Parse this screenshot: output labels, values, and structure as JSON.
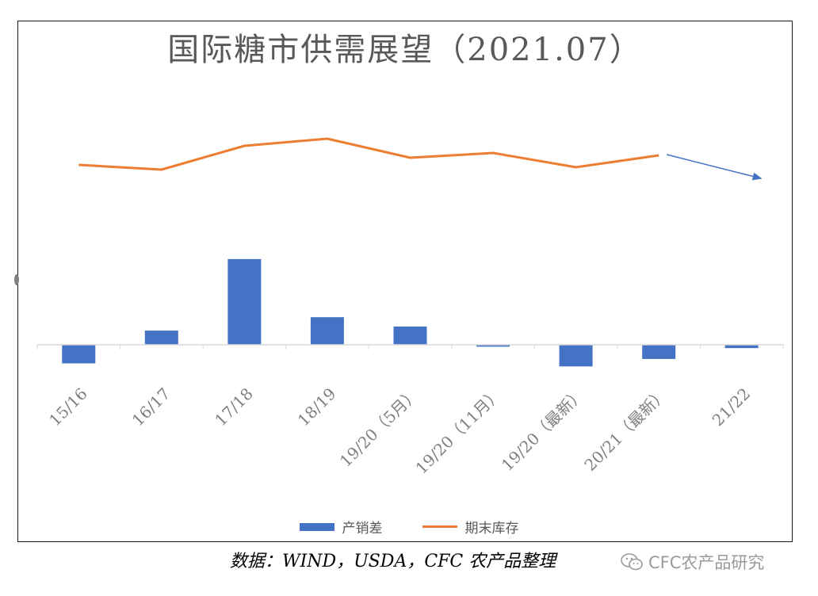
{
  "chart_data": {
    "type": "bar",
    "title": "国际糖市供需展望（2021.07）",
    "categories": [
      "15/16",
      "16/17",
      "17/18",
      "18/19",
      "19/20（5月）",
      "19/20（11月）",
      "19/20（最新）",
      "20/21（最新）",
      "21/22"
    ],
    "series": [
      {
        "name": "产销差",
        "type": "bar",
        "values": [
          -5.0,
          3.8,
          23.0,
          7.4,
          4.9,
          -0.5,
          -5.8,
          -3.8,
          -0.9
        ]
      },
      {
        "name": "期末库存",
        "type": "line",
        "values": [
          52.0,
          51.0,
          56.0,
          57.5,
          53.5,
          54.5,
          51.5,
          54.0,
          49.5
        ],
        "projected_last": true
      }
    ],
    "colors": {
      "bar": "#4472C4",
      "line": "#ED7D31",
      "arrow": "#4472C4"
    },
    "legend_position": "bottom",
    "grid": false
  },
  "source_text": "数据：WIND，USDA，CFC 农产品整理",
  "watermark_text": "CFC农产品研究"
}
